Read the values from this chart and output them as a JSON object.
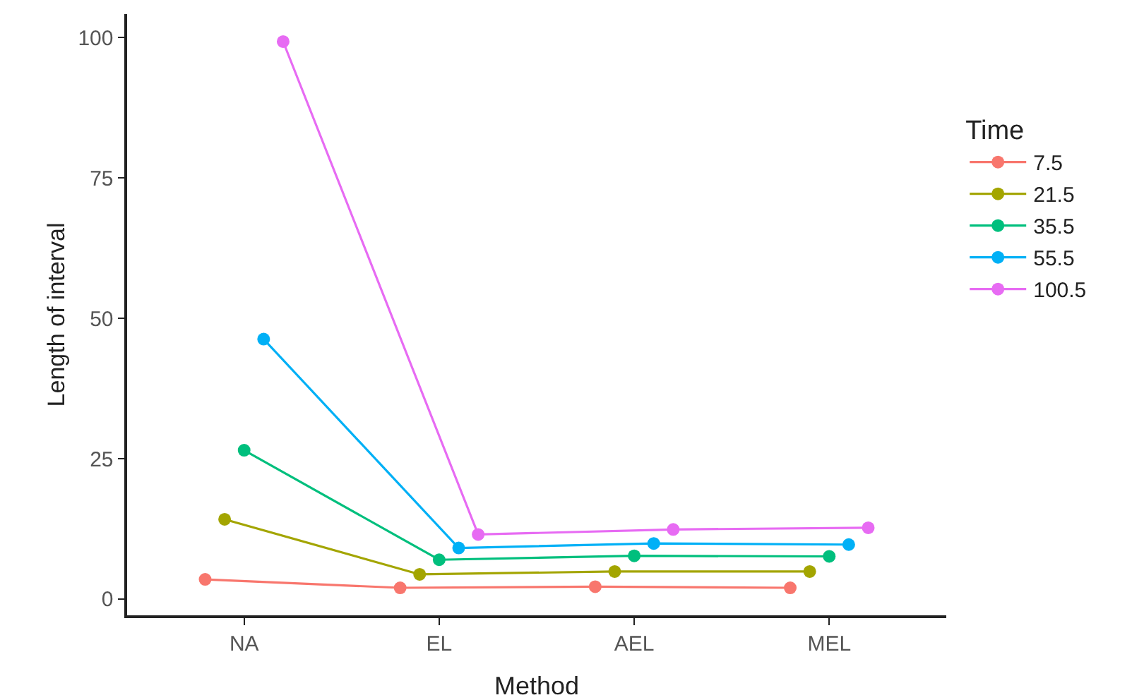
{
  "chart_data": {
    "type": "line",
    "xlabel": "Method",
    "ylabel": "Length of interval",
    "legend_title": "Time",
    "categories": [
      "NA",
      "EL",
      "AEL",
      "MEL"
    ],
    "series": [
      {
        "name": "7.5",
        "color": "#f8766d",
        "values": [
          3.5,
          2.0,
          2.2,
          2.0
        ]
      },
      {
        "name": "21.5",
        "color": "#a3a500",
        "values": [
          14.2,
          4.4,
          4.9,
          4.9
        ]
      },
      {
        "name": "35.5",
        "color": "#00bf7d",
        "values": [
          26.5,
          7.0,
          7.7,
          7.6
        ]
      },
      {
        "name": "55.5",
        "color": "#00b0f6",
        "values": [
          46.3,
          9.1,
          9.9,
          9.7
        ]
      },
      {
        "name": "100.5",
        "color": "#e76bf3",
        "values": [
          99.3,
          11.5,
          12.4,
          12.7
        ]
      }
    ],
    "ylim": [
      -2.9,
      104.2
    ],
    "yticks": [
      0,
      25,
      50,
      75,
      100
    ],
    "grid": false,
    "legend": "right",
    "marker": "circle",
    "line_style": "solid"
  }
}
